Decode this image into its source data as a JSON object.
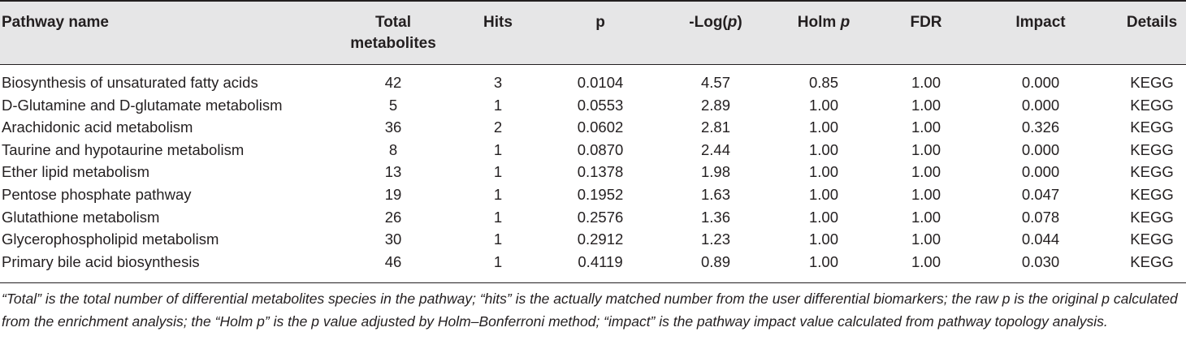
{
  "table": {
    "headers": {
      "pathway_name": "Pathway name",
      "total_line1": "Total",
      "total_line2": "metabolites",
      "hits": "Hits",
      "p": "p",
      "neglog_prefix": "-Log(",
      "neglog_p": "p",
      "neglog_suffix": ")",
      "holm_prefix": "Holm ",
      "holm_p": "p",
      "fdr": "FDR",
      "impact": "Impact",
      "details": "Details"
    },
    "rows": [
      {
        "name": "Biosynthesis of unsaturated fatty acids",
        "total": "42",
        "hits": "3",
        "p": "0.0104",
        "neglog": "4.57",
        "holm": "0.85",
        "fdr": "1.00",
        "impact": "0.000",
        "details": "KEGG"
      },
      {
        "name": "D-Glutamine and D-glutamate metabolism",
        "total": "5",
        "hits": "1",
        "p": "0.0553",
        "neglog": "2.89",
        "holm": "1.00",
        "fdr": "1.00",
        "impact": "0.000",
        "details": "KEGG"
      },
      {
        "name": "Arachidonic acid metabolism",
        "total": "36",
        "hits": "2",
        "p": "0.0602",
        "neglog": "2.81",
        "holm": "1.00",
        "fdr": "1.00",
        "impact": "0.326",
        "details": "KEGG"
      },
      {
        "name": "Taurine and hypotaurine metabolism",
        "total": "8",
        "hits": "1",
        "p": "0.0870",
        "neglog": "2.44",
        "holm": "1.00",
        "fdr": "1.00",
        "impact": "0.000",
        "details": "KEGG"
      },
      {
        "name": "Ether lipid metabolism",
        "total": "13",
        "hits": "1",
        "p": "0.1378",
        "neglog": "1.98",
        "holm": "1.00",
        "fdr": "1.00",
        "impact": "0.000",
        "details": "KEGG"
      },
      {
        "name": "Pentose phosphate pathway",
        "total": "19",
        "hits": "1",
        "p": "0.1952",
        "neglog": "1.63",
        "holm": "1.00",
        "fdr": "1.00",
        "impact": "0.047",
        "details": "KEGG"
      },
      {
        "name": "Glutathione metabolism",
        "total": "26",
        "hits": "1",
        "p": "0.2576",
        "neglog": "1.36",
        "holm": "1.00",
        "fdr": "1.00",
        "impact": "0.078",
        "details": "KEGG"
      },
      {
        "name": "Glycerophospholipid metabolism",
        "total": "30",
        "hits": "1",
        "p": "0.2912",
        "neglog": "1.23",
        "holm": "1.00",
        "fdr": "1.00",
        "impact": "0.044",
        "details": "KEGG"
      },
      {
        "name": "Primary bile acid biosynthesis",
        "total": "46",
        "hits": "1",
        "p": "0.4119",
        "neglog": "0.89",
        "holm": "1.00",
        "fdr": "1.00",
        "impact": "0.030",
        "details": "KEGG"
      }
    ]
  },
  "footnote": "“Total” is the total number of differential metabolites species in the pathway; “hits” is the actually matched number from the user differential biomarkers; the raw p is the original p calculated from the enrichment analysis; the “Holm p” is the p value adjusted by Holm–Bonferroni method; “impact” is the pathway impact value calculated from pathway topology analysis."
}
